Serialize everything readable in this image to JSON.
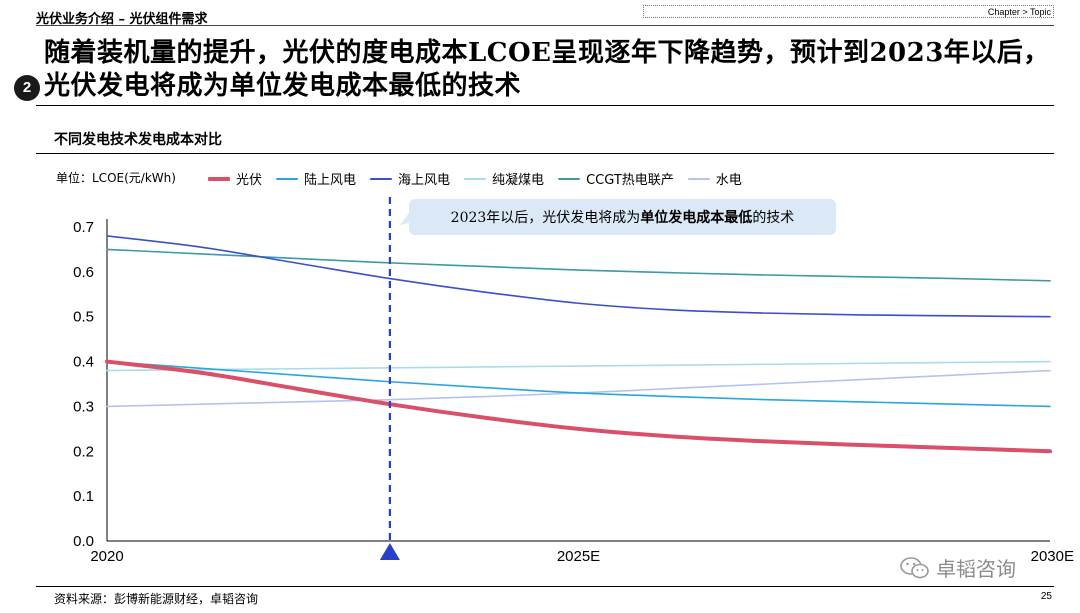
{
  "header": {
    "breadcrumb": "光伏业务介绍 – 光伏组件需求",
    "chapter": "Chapter > Topic"
  },
  "section_number": "2",
  "title": "随着装机量的提升，光伏的度电成本LCOE呈现逐年下降趋势，预计到2023年以后，光伏发电将成为单位发电成本最低的技术",
  "chart_title": "不同发电技术发电成本对比",
  "source": "资料来源：彭博新能源财经，卓韬咨询",
  "page_number": "25",
  "watermark": "卓韬咨询",
  "chart_data": {
    "type": "line",
    "ylabel": "单位：LCOE(元/kWh)",
    "ylim": [
      0,
      0.7
    ],
    "yticks": [
      "0.0",
      "0.1",
      "0.2",
      "0.3",
      "0.4",
      "0.5",
      "0.6",
      "0.7"
    ],
    "xlim": [
      2020,
      2030
    ],
    "xticks": [
      {
        "x": 2020,
        "label": "2020"
      },
      {
        "x": 2025,
        "label": "2025E"
      },
      {
        "x": 2030,
        "label": "2030E"
      }
    ],
    "x": [
      2020,
      2021,
      2022,
      2023,
      2024,
      2025,
      2026,
      2027,
      2028,
      2029,
      2030
    ],
    "marker_x": 2023,
    "annotation": {
      "prefix": "2023年以后，光伏发电将成为",
      "bold": "单位发电成本最低",
      "suffix": "的技术"
    },
    "series": [
      {
        "name": "光伏",
        "color": "#d9506a",
        "width": 4,
        "values": [
          0.4,
          0.375,
          0.34,
          0.305,
          0.275,
          0.25,
          0.233,
          0.222,
          0.214,
          0.207,
          0.2
        ]
      },
      {
        "name": "陆上风电",
        "color": "#2aa6de",
        "width": 1.6,
        "values": [
          0.4,
          0.385,
          0.37,
          0.355,
          0.342,
          0.33,
          0.322,
          0.315,
          0.31,
          0.305,
          0.3
        ]
      },
      {
        "name": "海上风电",
        "color": "#3a4fc8",
        "width": 1.6,
        "values": [
          0.68,
          0.655,
          0.62,
          0.585,
          0.555,
          0.53,
          0.515,
          0.508,
          0.504,
          0.502,
          0.5
        ]
      },
      {
        "name": "纯凝煤电",
        "color": "#a9dcea",
        "width": 1.6,
        "values": [
          0.38,
          0.382,
          0.384,
          0.386,
          0.388,
          0.39,
          0.392,
          0.394,
          0.396,
          0.398,
          0.4
        ]
      },
      {
        "name": "CCGT热电联产",
        "color": "#3b9aa4",
        "width": 1.6,
        "values": [
          0.65,
          0.64,
          0.63,
          0.62,
          0.612,
          0.604,
          0.598,
          0.593,
          0.589,
          0.585,
          0.58
        ]
      },
      {
        "name": "水电",
        "color": "#b7c2ec",
        "width": 1.6,
        "values": [
          0.3,
          0.305,
          0.31,
          0.315,
          0.322,
          0.33,
          0.34,
          0.35,
          0.36,
          0.37,
          0.38
        ]
      }
    ]
  }
}
